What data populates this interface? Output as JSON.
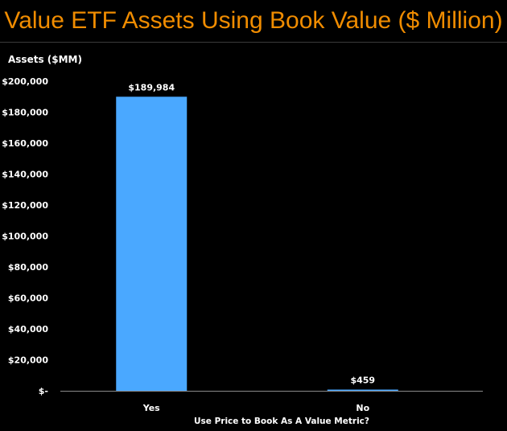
{
  "chart_data": {
    "type": "bar",
    "title": "Value ETF Assets Using Book Value ($ Million)",
    "ylabel": "Assets ($MM)",
    "xlabel": "Use Price to Book As A Value Metric?",
    "categories": [
      "Yes",
      "No"
    ],
    "values": [
      189984,
      459
    ],
    "data_labels": [
      "$189,984",
      "$459"
    ],
    "ylim": [
      0,
      200000
    ],
    "yticks": [
      0,
      20000,
      40000,
      60000,
      80000,
      100000,
      120000,
      140000,
      160000,
      180000,
      200000
    ],
    "ytick_labels": [
      "$-",
      "$20,000",
      "$40,000",
      "$60,000",
      "$80,000",
      "$100,000",
      "$120,000",
      "$140,000",
      "$160,000",
      "$180,000",
      "$200,000"
    ],
    "grid": false,
    "legend": "none",
    "colors": {
      "background": "#000000",
      "bar": "#4aa8ff",
      "title": "#f08c00",
      "text": "#ffffff",
      "axis": "#8a8a8a"
    }
  }
}
